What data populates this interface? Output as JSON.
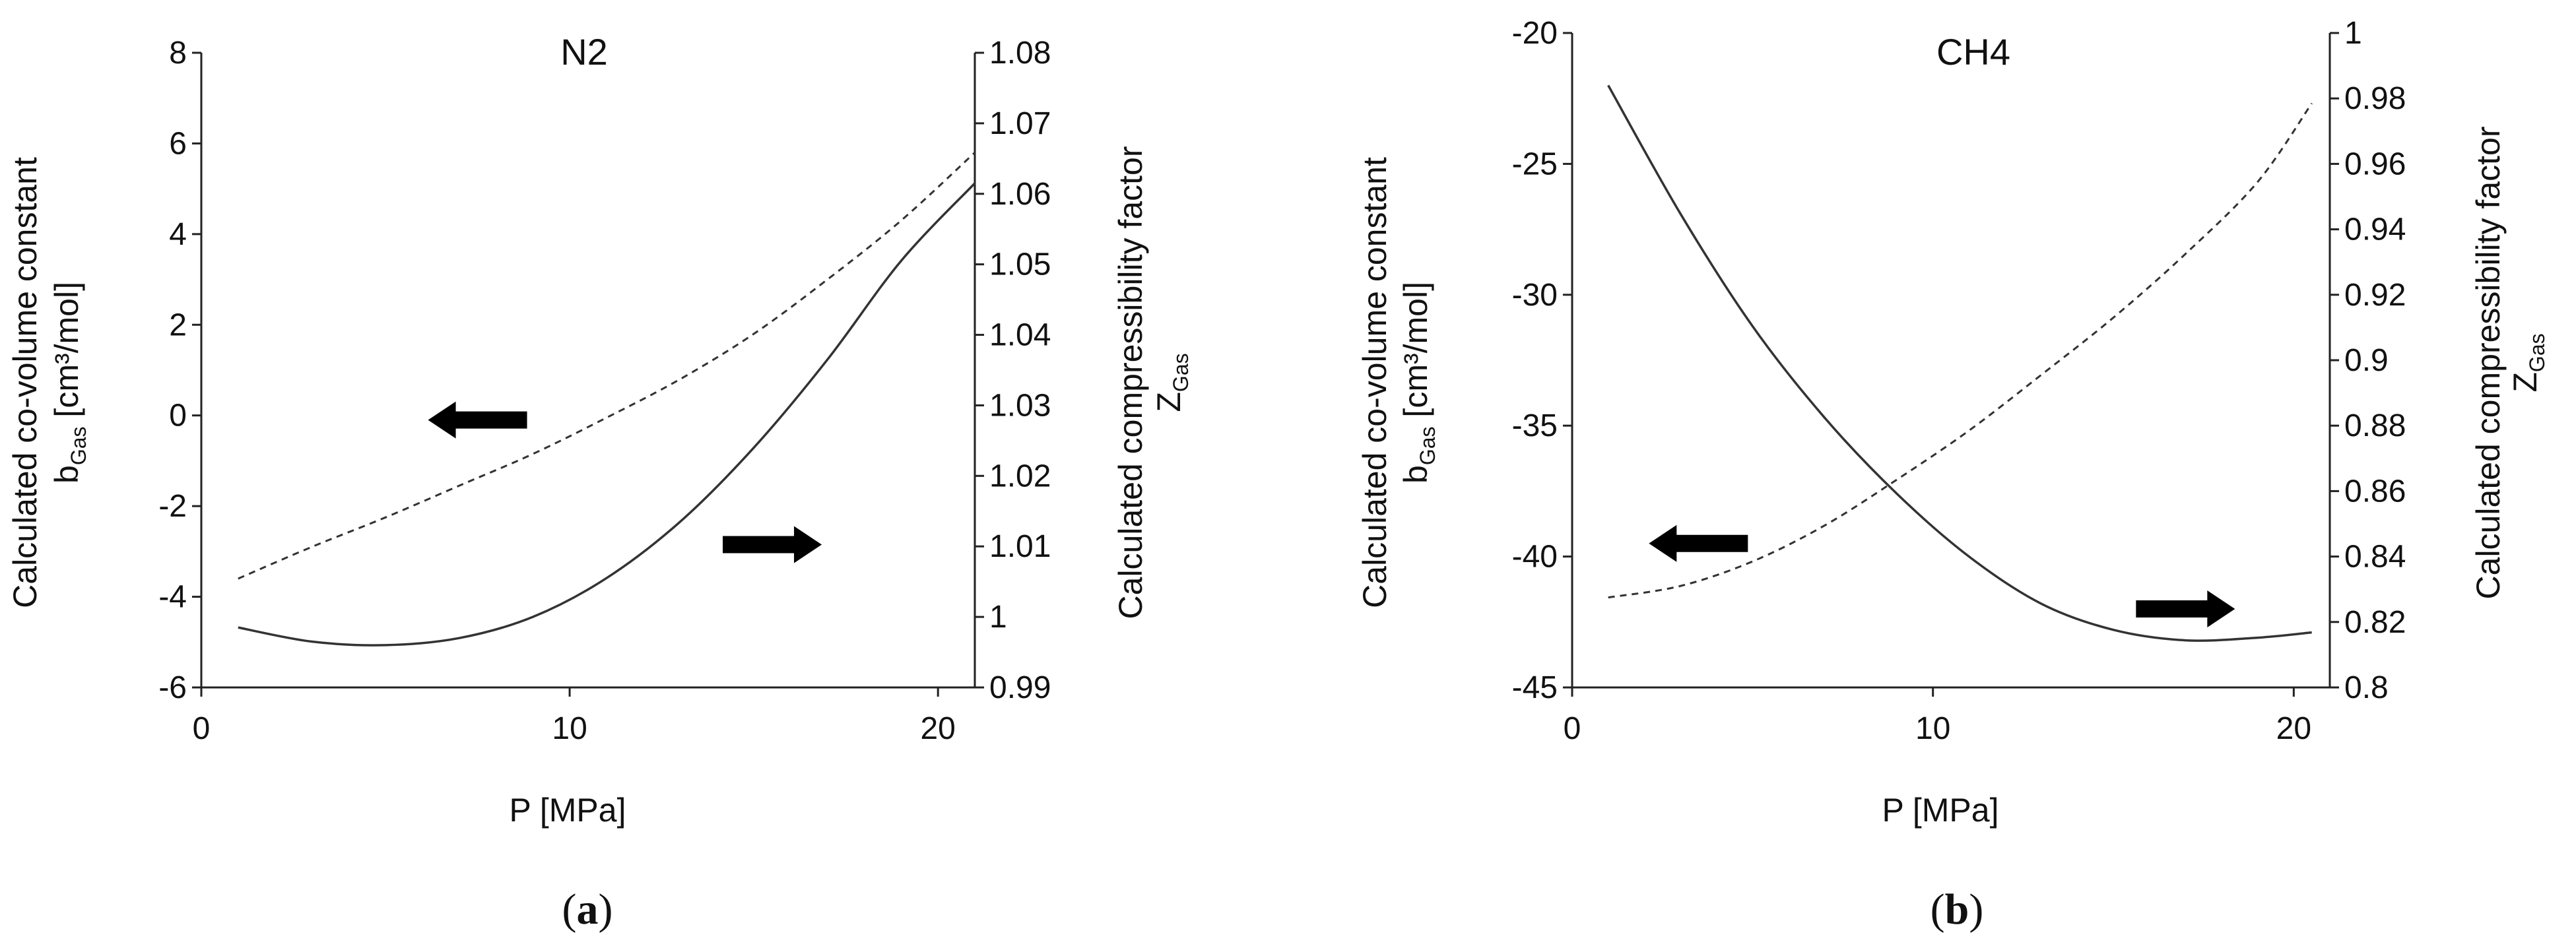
{
  "chart_data": [
    {
      "type": "line",
      "title": "N2",
      "caption": "a",
      "xlabel": "P [MPa]",
      "ylabel_left": {
        "line1": "Calculated co-volume constant",
        "line2_main": "b",
        "line2_sub": "Gas",
        "line2_rest": " [cm³/mol]"
      },
      "ylabel_right": {
        "line1": "Calculated compressibility factor",
        "line2_main": "Z",
        "line2_sub": "Gas"
      },
      "xlim": [
        0,
        21
      ],
      "ylim_left": [
        -6,
        8
      ],
      "ylim_right": [
        0.99,
        1.08
      ],
      "xticks": [
        "0",
        "10",
        "20"
      ],
      "yticks_left": [
        "-6",
        "-4",
        "-2",
        "0",
        "2",
        "4",
        "6",
        "8"
      ],
      "yticks_right": [
        "0.99",
        "1",
        "1.01",
        "1.02",
        "1.03",
        "1.04",
        "1.05",
        "1.06",
        "1.07",
        "1.08"
      ],
      "series": [
        {
          "style": "dashed",
          "axis": "left",
          "x": [
            1,
            3,
            5,
            7,
            9,
            11,
            13,
            15,
            17,
            19,
            21
          ],
          "y": [
            -3.6,
            -2.9,
            -2.25,
            -1.55,
            -0.85,
            -0.05,
            0.8,
            1.8,
            3.0,
            4.3,
            5.8
          ]
        },
        {
          "style": "solid",
          "axis": "right",
          "x": [
            1,
            3,
            5,
            7,
            9,
            11,
            13,
            15,
            17,
            19,
            21
          ],
          "y": [
            0.9985,
            0.9965,
            0.996,
            0.997,
            1.0,
            1.0055,
            1.0135,
            1.024,
            1.0365,
            1.0505,
            1.0615
          ]
        }
      ],
      "annotations": [
        {
          "shape": "arrow",
          "direction": "left",
          "x": 7.5,
          "y_left": -0.1
        },
        {
          "shape": "arrow",
          "direction": "right",
          "x": 15.5,
          "y_left": -2.85
        }
      ]
    },
    {
      "type": "line",
      "title": "CH4",
      "caption": "b",
      "xlabel": "P [MPa]",
      "ylabel_left": {
        "line1": "Calculated co-volume constant",
        "line2_main": "b",
        "line2_sub": "Gas",
        "line2_rest": " [cm³/mol]"
      },
      "ylabel_right": {
        "line1": "Calculated compressibility factor",
        "line2_main": "Z",
        "line2_sub": "Gas"
      },
      "xlim": [
        0,
        21
      ],
      "ylim_left": [
        -45,
        -20
      ],
      "ylim_right": [
        0.8,
        1.0
      ],
      "xticks": [
        "0",
        "10",
        "20"
      ],
      "yticks_left": [
        "-45",
        "-40",
        "-35",
        "-30",
        "-25",
        "-20"
      ],
      "yticks_right": [
        "0.8",
        "0.82",
        "0.84",
        "0.86",
        "0.88",
        "0.9",
        "0.92",
        "0.94",
        "0.96",
        "0.98",
        "1"
      ],
      "series": [
        {
          "style": "solid",
          "axis": "left",
          "x": [
            1,
            3,
            5,
            7,
            9,
            11,
            13,
            15,
            17,
            19,
            20.5
          ],
          "y": [
            -22.0,
            -26.9,
            -31.2,
            -34.7,
            -37.6,
            -40.0,
            -41.8,
            -42.8,
            -43.2,
            -43.1,
            -42.9
          ]
        },
        {
          "style": "dashed",
          "axis": "right",
          "x": [
            1,
            3,
            5,
            7,
            9,
            11,
            13,
            15,
            17,
            19,
            20.5
          ],
          "y": [
            0.8275,
            0.831,
            0.8385,
            0.8495,
            0.8635,
            0.8785,
            0.8955,
            0.913,
            0.9325,
            0.9545,
            0.9785
          ]
        }
      ],
      "annotations": [
        {
          "shape": "arrow",
          "direction": "left",
          "x": 3.5,
          "y_left": -39.5
        },
        {
          "shape": "arrow",
          "direction": "right",
          "x": 17.0,
          "y_left": -42.0
        }
      ]
    }
  ]
}
